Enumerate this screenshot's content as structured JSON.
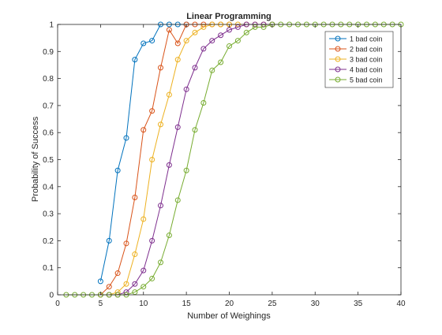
{
  "chart_data": {
    "type": "line",
    "title": "Linear Programming",
    "xlabel": "Number of Weighings",
    "ylabel": "Probability of Success",
    "xlim": [
      0,
      40
    ],
    "ylim": [
      0,
      1
    ],
    "xticks": [
      0,
      5,
      10,
      15,
      20,
      25,
      30,
      35,
      40
    ],
    "yticks": [
      0,
      0.1,
      0.2,
      0.3,
      0.4,
      0.5,
      0.6,
      0.7,
      0.8,
      0.9,
      1
    ],
    "grid": false,
    "legend_position": "top-right",
    "marker": "circle",
    "series": [
      {
        "name": "1 bad coin",
        "color": "#0072BD",
        "x": [
          5,
          6,
          7,
          8,
          9,
          10,
          11,
          12,
          13,
          14,
          15
        ],
        "y": [
          0.05,
          0.2,
          0.46,
          0.58,
          0.87,
          0.93,
          0.94,
          1.0,
          1.0,
          1.0,
          1.0
        ]
      },
      {
        "name": "2 bad coin",
        "color": "#D95319",
        "x": [
          5,
          6,
          7,
          8,
          9,
          10,
          11,
          12,
          13,
          14,
          15,
          16,
          17,
          18,
          19,
          20
        ],
        "y": [
          0.0,
          0.03,
          0.08,
          0.19,
          0.36,
          0.61,
          0.68,
          0.84,
          0.98,
          0.93,
          1.0,
          1.0,
          1.0,
          1.0,
          1.0,
          1.0
        ]
      },
      {
        "name": "3 bad coin",
        "color": "#EDB120",
        "x": [
          6,
          7,
          8,
          9,
          10,
          11,
          12,
          13,
          14,
          15,
          16,
          17,
          18,
          19,
          20,
          21,
          22,
          23,
          24,
          25
        ],
        "y": [
          0.0,
          0.01,
          0.04,
          0.15,
          0.28,
          0.5,
          0.63,
          0.74,
          0.87,
          0.94,
          0.97,
          0.99,
          1.0,
          1.0,
          1.0,
          1.0,
          1.0,
          1.0,
          1.0,
          1.0
        ]
      },
      {
        "name": "4 bad coin",
        "color": "#7E2F8E",
        "x": [
          6,
          7,
          8,
          9,
          10,
          11,
          12,
          13,
          14,
          15,
          16,
          17,
          18,
          19,
          20,
          21,
          22,
          23,
          24,
          25
        ],
        "y": [
          0.0,
          0.0,
          0.01,
          0.04,
          0.09,
          0.2,
          0.33,
          0.48,
          0.62,
          0.76,
          0.84,
          0.91,
          0.94,
          0.96,
          0.98,
          0.99,
          1.0,
          1.0,
          1.0,
          1.0
        ]
      },
      {
        "name": "5 bad coin",
        "color": "#77AC30",
        "x": [
          1,
          2,
          3,
          4,
          5,
          6,
          7,
          8,
          9,
          10,
          11,
          12,
          13,
          14,
          15,
          16,
          17,
          18,
          19,
          20,
          21,
          22,
          23,
          24,
          25,
          26,
          27,
          28,
          29,
          30,
          31,
          32,
          33,
          34,
          35,
          36,
          37,
          38,
          39,
          40
        ],
        "y": [
          0.0,
          0.0,
          0.0,
          0.0,
          0.0,
          0.0,
          0.0,
          0.0,
          0.01,
          0.03,
          0.06,
          0.12,
          0.22,
          0.35,
          0.46,
          0.61,
          0.71,
          0.83,
          0.86,
          0.92,
          0.94,
          0.97,
          0.99,
          0.99,
          1.0,
          1.0,
          1.0,
          1.0,
          1.0,
          1.0,
          1.0,
          1.0,
          1.0,
          1.0,
          1.0,
          1.0,
          1.0,
          1.0,
          1.0,
          1.0
        ]
      }
    ]
  }
}
